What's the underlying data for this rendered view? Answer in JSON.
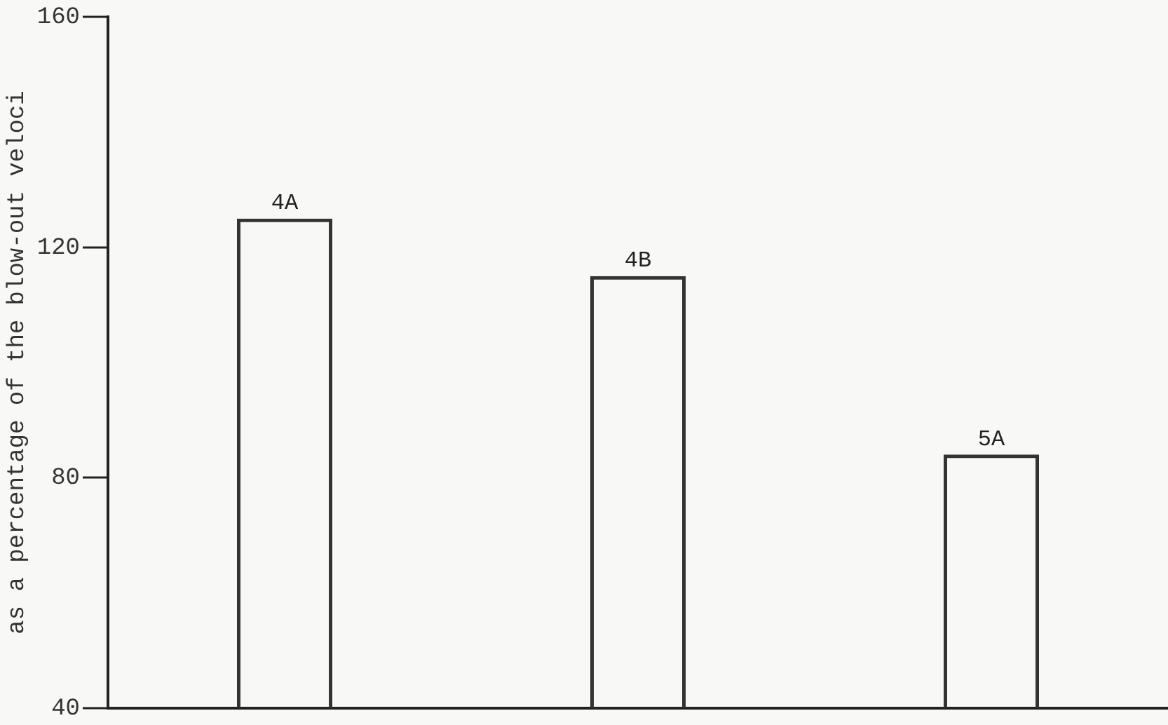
{
  "chart_data": {
    "type": "bar",
    "ylabel": "as a percentage of the blow-out veloci",
    "categories": [
      "4A",
      "4B",
      "5A"
    ],
    "values": [
      125,
      115,
      84
    ],
    "color": "#333333",
    "ylim": [
      40,
      160
    ],
    "yticks": [
      40,
      80,
      120,
      160
    ],
    "grid": false,
    "legend": false
  }
}
